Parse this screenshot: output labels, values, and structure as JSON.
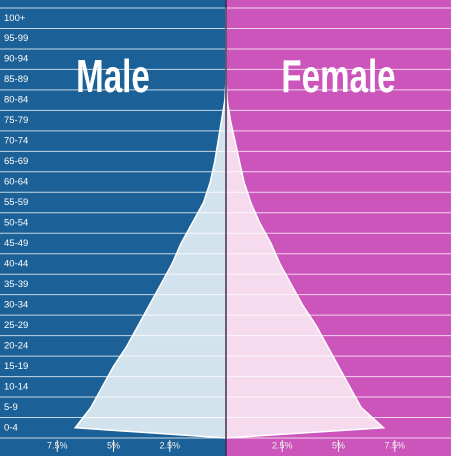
{
  "chart_data": {
    "type": "pyramid",
    "categories": [
      "0-4",
      "5-9",
      "10-14",
      "15-19",
      "20-24",
      "25-29",
      "30-34",
      "35-39",
      "40-44",
      "45-49",
      "50-54",
      "55-59",
      "60-64",
      "65-69",
      "70-74",
      "75-79",
      "80-84",
      "85-89",
      "90-94",
      "95-99",
      "100+"
    ],
    "series": [
      {
        "name": "Male",
        "color": "#1b6096",
        "fill": "#d2e3ee",
        "side": "left",
        "values": [
          6.7,
          6.0,
          5.5,
          5.0,
          4.4,
          3.9,
          3.4,
          2.9,
          2.4,
          2.0,
          1.5,
          1.0,
          0.7,
          0.5,
          0.35,
          0.2,
          0.05,
          0,
          0,
          0,
          0
        ]
      },
      {
        "name": "Female",
        "color": "#cc55bb",
        "fill": "#f6dbef",
        "side": "right",
        "values": [
          7.0,
          6.0,
          5.5,
          5.0,
          4.5,
          4.0,
          3.4,
          2.9,
          2.4,
          2.0,
          1.5,
          1.1,
          0.8,
          0.6,
          0.4,
          0.2,
          0.05,
          0,
          0,
          0,
          0
        ]
      }
    ],
    "xlim": [
      -10,
      10
    ],
    "xticks": [
      {
        "value": -7.5,
        "label": "7.5%"
      },
      {
        "value": -5,
        "label": "5%"
      },
      {
        "value": -2.5,
        "label": "2.5%"
      },
      {
        "value": 2.5,
        "label": "2.5%"
      },
      {
        "value": 5,
        "label": "5%"
      },
      {
        "value": 7.5,
        "label": "7.5%"
      }
    ]
  }
}
